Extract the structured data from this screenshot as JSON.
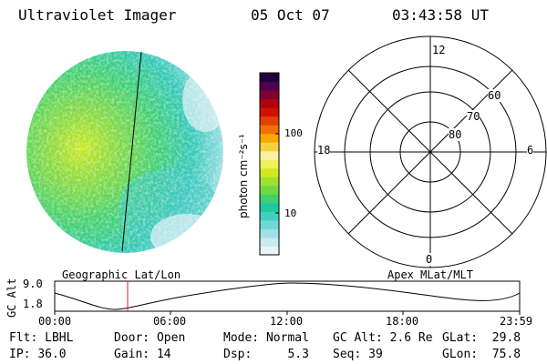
{
  "header": {
    "instrument": "Ultraviolet Imager",
    "date": "05 Oct 07",
    "time": "03:43:58 UT"
  },
  "colorbar": {
    "unit_label": "photon cm⁻²s⁻¹",
    "ticks": [
      "100",
      "10"
    ],
    "colors": [
      "#e8f4f8",
      "#c8eaf0",
      "#a0e0e6",
      "#70d8d8",
      "#40d0c0",
      "#20c8a0",
      "#40d070",
      "#70d840",
      "#a0e030",
      "#d0e820",
      "#f0f060",
      "#f8f0a0",
      "#f8d040",
      "#f8a800",
      "#f07000",
      "#e04000",
      "#d01000",
      "#b00010",
      "#800030",
      "#500050",
      "#200040"
    ]
  },
  "polar_plot": {
    "mlt_labels": {
      "top": "12",
      "left": "18",
      "right": "6",
      "bottom": "0"
    },
    "lat_labels": [
      "60",
      "70",
      "80"
    ]
  },
  "timeline": {
    "axis_label": "GC Alt",
    "y_ticks": [
      "9.0",
      "1.8"
    ],
    "left_caption": "Geographic Lat/Lon",
    "right_caption": "Apex MLat/MLT",
    "x_ticks": [
      "00:00",
      "06:00",
      "12:00",
      "18:00",
      "23:59"
    ]
  },
  "status": {
    "row1": [
      {
        "label": "Flt:",
        "value": "LBHL"
      },
      {
        "label": "Door:",
        "value": "Open"
      },
      {
        "label": "Mode:",
        "value": "Normal"
      },
      {
        "label": "GC Alt:",
        "value": "2.6 Re"
      },
      {
        "label": "GLat:",
        "value": "29.8"
      }
    ],
    "row2": [
      {
        "label": "IP:",
        "value": "36.0"
      },
      {
        "label": "Gain:",
        "value": "14"
      },
      {
        "label": "Dsp:",
        "value": "5.3"
      },
      {
        "label": "Seq:",
        "value": "39"
      },
      {
        "label": "GLon:",
        "value": "75.8"
      }
    ]
  }
}
